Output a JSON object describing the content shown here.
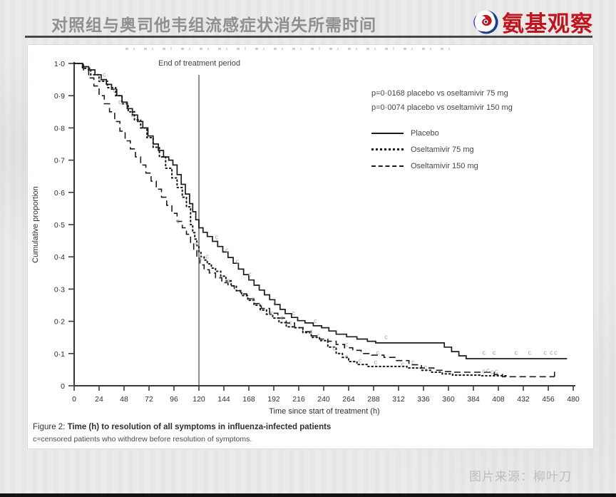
{
  "header": {
    "title": "对照组与奥司他韦组流感症状消失所需时间",
    "logo_text": "氨基观察",
    "logo_red": "#c0151f",
    "logo_blue": "#1d3d8f"
  },
  "footer": {
    "source_label": "图片来源：柳叶刀"
  },
  "figure": {
    "caption_prefix": "Figure 2: ",
    "caption_bold": "Time (h) to resolution of all symptoms in influenza-infected patients",
    "caption_note": "c=censored patients who withdrew before resolution of symptoms.",
    "pvalues": [
      "p=0·0168 placebo vs oseltamivir 75 mg",
      "p=0·0074 placebo vs oseltamivir 150 mg"
    ]
  },
  "chart_data": {
    "type": "line",
    "subtype": "kaplan-meier-step",
    "xlabel": "Time since start of treatment (h)",
    "ylabel": "Cumulative proportion",
    "xlim": [
      0,
      480
    ],
    "ylim": [
      0,
      1
    ],
    "x_ticks": [
      0,
      24,
      48,
      72,
      96,
      120,
      144,
      168,
      192,
      216,
      240,
      264,
      288,
      312,
      336,
      360,
      384,
      408,
      432,
      456,
      480
    ],
    "y_ticks": [
      {
        "v": 0.0,
        "label": "0"
      },
      {
        "v": 0.1,
        "label": "0·1"
      },
      {
        "v": 0.2,
        "label": "0·2"
      },
      {
        "v": 0.3,
        "label": "0·3"
      },
      {
        "v": 0.4,
        "label": "0·4"
      },
      {
        "v": 0.5,
        "label": "0·5"
      },
      {
        "v": 0.6,
        "label": "0·6"
      },
      {
        "v": 0.7,
        "label": "0·7"
      },
      {
        "v": 0.8,
        "label": "0·8"
      },
      {
        "v": 0.9,
        "label": "0·9"
      },
      {
        "v": 1.0,
        "label": "1·0"
      }
    ],
    "grid": false,
    "legend_position": "upper-right-inside",
    "vline": {
      "x": 120,
      "label": "End of treatment period",
      "color": "#8f8f8f"
    },
    "censor_marker": "c",
    "censor_color": "#8fa8c0",
    "line_color": "#1c1c1c",
    "legend": [
      {
        "name": "Placebo",
        "style": "solid"
      },
      {
        "name": "Oseltamivir 75 mg",
        "style": "dotted"
      },
      {
        "name": "Oseltamivir 150 mg",
        "style": "dashed"
      }
    ],
    "series": [
      {
        "name": "Placebo",
        "style": "solid",
        "end_tick": false,
        "points": [
          [
            0,
            1.0
          ],
          [
            8,
            0.99
          ],
          [
            14,
            0.98
          ],
          [
            20,
            0.965
          ],
          [
            26,
            0.95
          ],
          [
            31,
            0.935
          ],
          [
            36,
            0.92
          ],
          [
            41,
            0.9
          ],
          [
            46,
            0.88
          ],
          [
            51,
            0.86
          ],
          [
            56,
            0.84
          ],
          [
            61,
            0.82
          ],
          [
            66,
            0.8
          ],
          [
            71,
            0.775
          ],
          [
            76,
            0.75
          ],
          [
            81,
            0.73
          ],
          [
            86,
            0.71
          ],
          [
            91,
            0.7
          ],
          [
            95,
            0.685
          ],
          [
            99,
            0.655
          ],
          [
            103,
            0.625
          ],
          [
            107,
            0.595
          ],
          [
            111,
            0.565
          ],
          [
            114,
            0.54
          ],
          [
            117,
            0.515
          ],
          [
            120,
            0.49
          ],
          [
            124,
            0.476
          ],
          [
            128,
            0.463
          ],
          [
            133,
            0.448
          ],
          [
            138,
            0.432
          ],
          [
            143,
            0.415
          ],
          [
            148,
            0.398
          ],
          [
            153,
            0.38
          ],
          [
            158,
            0.362
          ],
          [
            163,
            0.345
          ],
          [
            168,
            0.328
          ],
          [
            173,
            0.312
          ],
          [
            178,
            0.297
          ],
          [
            183,
            0.282
          ],
          [
            188,
            0.267
          ],
          [
            193,
            0.252
          ],
          [
            198,
            0.237
          ],
          [
            203,
            0.224
          ],
          [
            209,
            0.212
          ],
          [
            215,
            0.202
          ],
          [
            222,
            0.195
          ],
          [
            230,
            0.186
          ],
          [
            238,
            0.18
          ],
          [
            245,
            0.17
          ],
          [
            252,
            0.16
          ],
          [
            262,
            0.152
          ],
          [
            272,
            0.145
          ],
          [
            282,
            0.138
          ],
          [
            290,
            0.133
          ],
          [
            348,
            0.133
          ],
          [
            356,
            0.12
          ],
          [
            363,
            0.106
          ],
          [
            370,
            0.093
          ],
          [
            377,
            0.084
          ],
          [
            474,
            0.084
          ]
        ],
        "censored": [
          [
            29,
            0.955
          ],
          [
            39,
            0.905
          ],
          [
            137,
            0.45
          ],
          [
            147,
            0.41
          ],
          [
            157,
            0.375
          ],
          [
            169,
            0.335
          ],
          [
            193,
            0.245
          ],
          [
            211,
            0.215
          ],
          [
            232,
            0.19
          ],
          [
            300,
            0.14
          ],
          [
            394,
            0.092
          ],
          [
            404,
            0.092
          ],
          [
            425,
            0.092
          ],
          [
            438,
            0.092
          ],
          [
            453,
            0.092
          ],
          [
            459,
            0.092
          ],
          [
            463,
            0.092
          ]
        ]
      },
      {
        "name": "Oseltamivir 75 mg",
        "style": "dotted",
        "end_tick": false,
        "points": [
          [
            0,
            1.0
          ],
          [
            8,
            0.985
          ],
          [
            16,
            0.965
          ],
          [
            24,
            0.945
          ],
          [
            32,
            0.925
          ],
          [
            40,
            0.9
          ],
          [
            46,
            0.875
          ],
          [
            52,
            0.85
          ],
          [
            58,
            0.825
          ],
          [
            64,
            0.8
          ],
          [
            70,
            0.77
          ],
          [
            76,
            0.74
          ],
          [
            82,
            0.71
          ],
          [
            88,
            0.675
          ],
          [
            94,
            0.645
          ],
          [
            99,
            0.615
          ],
          [
            104,
            0.585
          ],
          [
            108,
            0.555
          ],
          [
            112,
            0.5
          ],
          [
            114,
            0.475
          ],
          [
            116,
            0.455
          ],
          [
            118,
            0.435
          ],
          [
            120,
            0.415
          ],
          [
            122,
            0.4
          ],
          [
            125,
            0.39
          ],
          [
            128,
            0.378
          ],
          [
            132,
            0.365
          ],
          [
            136,
            0.355
          ],
          [
            141,
            0.34
          ],
          [
            146,
            0.325
          ],
          [
            151,
            0.31
          ],
          [
            156,
            0.295
          ],
          [
            161,
            0.28
          ],
          [
            167,
            0.265
          ],
          [
            173,
            0.25
          ],
          [
            179,
            0.235
          ],
          [
            185,
            0.222
          ],
          [
            191,
            0.21
          ],
          [
            197,
            0.196
          ],
          [
            204,
            0.183
          ],
          [
            212,
            0.18
          ],
          [
            220,
            0.165
          ],
          [
            228,
            0.15
          ],
          [
            236,
            0.14
          ],
          [
            244,
            0.12
          ],
          [
            252,
            0.1
          ],
          [
            258,
            0.088
          ],
          [
            264,
            0.075
          ],
          [
            272,
            0.066
          ],
          [
            282,
            0.06
          ],
          [
            300,
            0.06
          ],
          [
            320,
            0.055
          ],
          [
            334,
            0.048
          ],
          [
            344,
            0.042
          ],
          [
            354,
            0.037
          ],
          [
            364,
            0.033
          ],
          [
            382,
            0.033
          ],
          [
            392,
            0.031
          ],
          [
            416,
            0.03
          ]
        ],
        "censored": [
          [
            25,
            0.94
          ],
          [
            44,
            0.87
          ],
          [
            56,
            0.83
          ],
          [
            118,
            0.43
          ],
          [
            128,
            0.39
          ],
          [
            150,
            0.315
          ],
          [
            190,
            0.215
          ],
          [
            208,
            0.185
          ],
          [
            235,
            0.145
          ],
          [
            250,
            0.105
          ],
          [
            262,
            0.08
          ],
          [
            275,
            0.068
          ],
          [
            290,
            0.062
          ],
          [
            316,
            0.056
          ],
          [
            338,
            0.046
          ],
          [
            394,
            0.034
          ],
          [
            402,
            0.032
          ]
        ]
      },
      {
        "name": "Oseltamivir 150 mg",
        "style": "dashed",
        "end_tick": true,
        "points": [
          [
            0,
            1.0
          ],
          [
            9,
            0.98
          ],
          [
            14,
            0.955
          ],
          [
            19,
            0.93
          ],
          [
            24,
            0.9
          ],
          [
            29,
            0.875
          ],
          [
            34,
            0.85
          ],
          [
            39,
            0.82
          ],
          [
            44,
            0.79
          ],
          [
            49,
            0.76
          ],
          [
            54,
            0.735
          ],
          [
            59,
            0.71
          ],
          [
            64,
            0.685
          ],
          [
            69,
            0.66
          ],
          [
            74,
            0.635
          ],
          [
            79,
            0.61
          ],
          [
            84,
            0.585
          ],
          [
            89,
            0.56
          ],
          [
            94,
            0.535
          ],
          [
            99,
            0.51
          ],
          [
            104,
            0.49
          ],
          [
            108,
            0.47
          ],
          [
            112,
            0.445
          ],
          [
            115,
            0.42
          ],
          [
            118,
            0.395
          ],
          [
            121,
            0.375
          ],
          [
            125,
            0.36
          ],
          [
            130,
            0.35
          ],
          [
            136,
            0.335
          ],
          [
            142,
            0.32
          ],
          [
            148,
            0.31
          ],
          [
            154,
            0.295
          ],
          [
            160,
            0.285
          ],
          [
            166,
            0.27
          ],
          [
            173,
            0.255
          ],
          [
            180,
            0.24
          ],
          [
            188,
            0.225
          ],
          [
            196,
            0.21
          ],
          [
            204,
            0.195
          ],
          [
            212,
            0.18
          ],
          [
            220,
            0.168
          ],
          [
            228,
            0.155
          ],
          [
            236,
            0.145
          ],
          [
            244,
            0.138
          ],
          [
            252,
            0.128
          ],
          [
            260,
            0.118
          ],
          [
            268,
            0.11
          ],
          [
            276,
            0.1
          ],
          [
            286,
            0.095
          ],
          [
            298,
            0.088
          ],
          [
            310,
            0.078
          ],
          [
            322,
            0.065
          ],
          [
            334,
            0.055
          ],
          [
            346,
            0.048
          ],
          [
            356,
            0.044
          ],
          [
            366,
            0.042
          ],
          [
            394,
            0.042
          ],
          [
            404,
            0.035
          ],
          [
            412,
            0.028
          ],
          [
            462,
            0.028
          ]
        ],
        "censored": [
          [
            100,
            0.5
          ],
          [
            122,
            0.385
          ],
          [
            148,
            0.315
          ],
          [
            172,
            0.258
          ],
          [
            200,
            0.2
          ],
          [
            228,
            0.158
          ],
          [
            262,
            0.117
          ],
          [
            292,
            0.092
          ],
          [
            326,
            0.062
          ],
          [
            398,
            0.038
          ],
          [
            406,
            0.034
          ]
        ]
      }
    ]
  }
}
